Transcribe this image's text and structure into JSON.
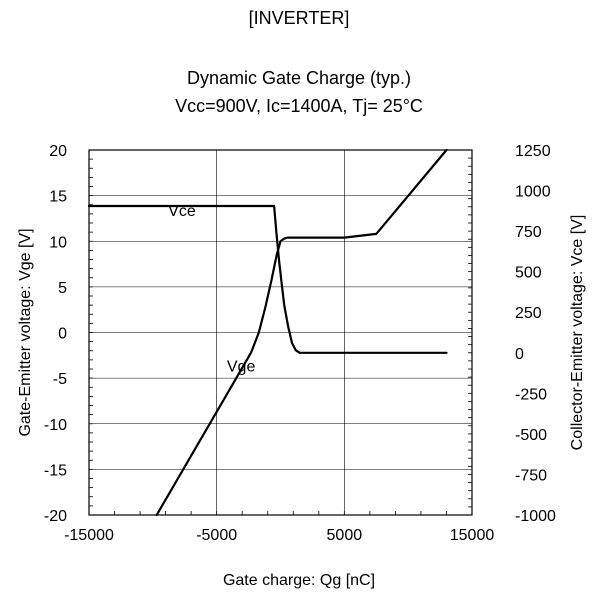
{
  "page": {
    "section_title": "[INVERTER]"
  },
  "chart_data": {
    "type": "line",
    "title": "Dynamic Gate Charge (typ.)",
    "subtitle": "Vcc=900V, Ic=1400A, Tj= 25°C",
    "xlabel": "Gate charge: Qg [nC]",
    "ylabel_left": "Gate-Emitter voltage:  Vge [V]",
    "ylabel_right": "Collector-Emitter voltage: Vce [V]",
    "xlim": [
      -15000,
      15000
    ],
    "ylim_left": [
      -20,
      20
    ],
    "ylim_right": [
      -1000,
      1250
    ],
    "x_ticks": [
      "-15000",
      "-5000",
      "5000",
      "15000"
    ],
    "x_tick_values": [
      -15000,
      -5000,
      5000,
      15000
    ],
    "y_left_ticks": [
      "20",
      "15",
      "10",
      "5",
      "0",
      "-5",
      "-10",
      "-15",
      "-20"
    ],
    "y_left_tick_values": [
      20,
      15,
      10,
      5,
      0,
      -5,
      -10,
      -15,
      -20
    ],
    "y_right_ticks": [
      "1250",
      "1000",
      "750",
      "500",
      "250",
      "0",
      "-250",
      "-500",
      "-750",
      "-1000"
    ],
    "y_right_tick_values": [
      1250,
      1000,
      750,
      500,
      250,
      0,
      -250,
      -500,
      -750,
      -1000
    ],
    "grid": true,
    "series": [
      {
        "name": "Vge",
        "axis": "left",
        "x": [
          -9700,
          -2300,
          -1700,
          -1200,
          -700,
          -300,
          0,
          300,
          600,
          900,
          5000,
          7500,
          13000
        ],
        "y": [
          -20,
          -2.2,
          0,
          2.7,
          5.8,
          8.5,
          10,
          10.3,
          10.4,
          10.4,
          10.4,
          10.8,
          20
        ]
      },
      {
        "name": "Vce",
        "axis": "right",
        "x": [
          -15000,
          -500,
          -300,
          -100,
          100,
          300,
          600,
          900,
          1200,
          1500,
          13000
        ],
        "y": [
          905,
          905,
          720,
          560,
          420,
          290,
          160,
          60,
          15,
          0,
          0
        ]
      }
    ],
    "annotations": [
      {
        "text": "Vce",
        "x": -8800,
        "y_left": 13.4
      },
      {
        "text": "Vge",
        "x": -4200,
        "y_left": -3.6
      }
    ]
  }
}
